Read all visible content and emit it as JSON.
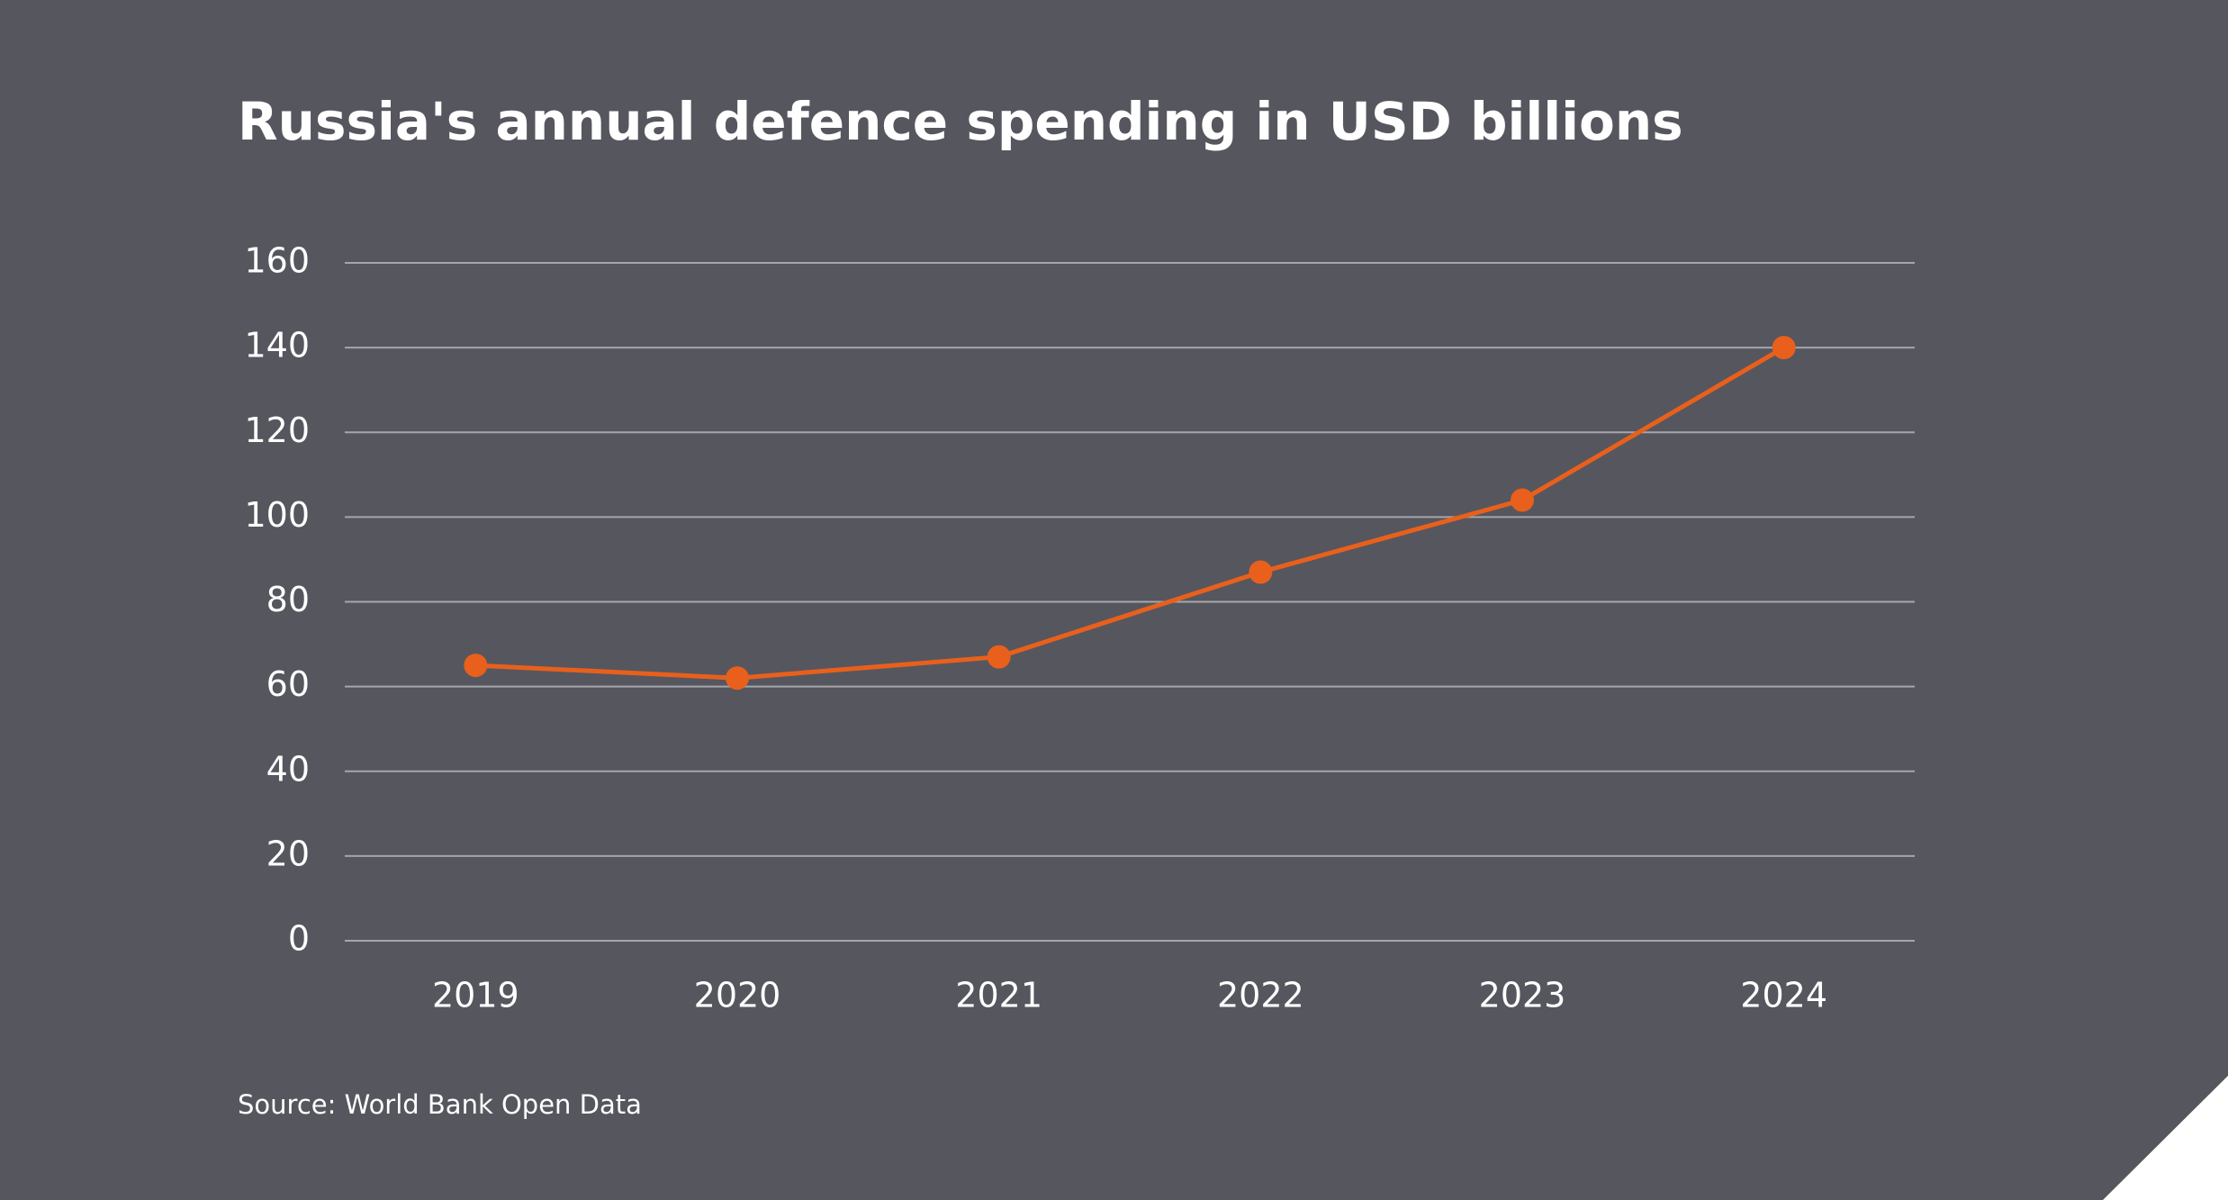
{
  "chart_data": {
    "type": "line",
    "title": "Russia's annual defence spending in USD billions",
    "categories": [
      "2019",
      "2020",
      "2021",
      "2022",
      "2023",
      "2024"
    ],
    "values": [
      65,
      62,
      67,
      87,
      104,
      140
    ],
    "color": "#e8601c",
    "ylim": [
      0,
      160
    ],
    "yticks": [
      0,
      20,
      40,
      60,
      80,
      100,
      120,
      140,
      160
    ],
    "grid": true,
    "source": "Source: World Bank Open Data"
  }
}
